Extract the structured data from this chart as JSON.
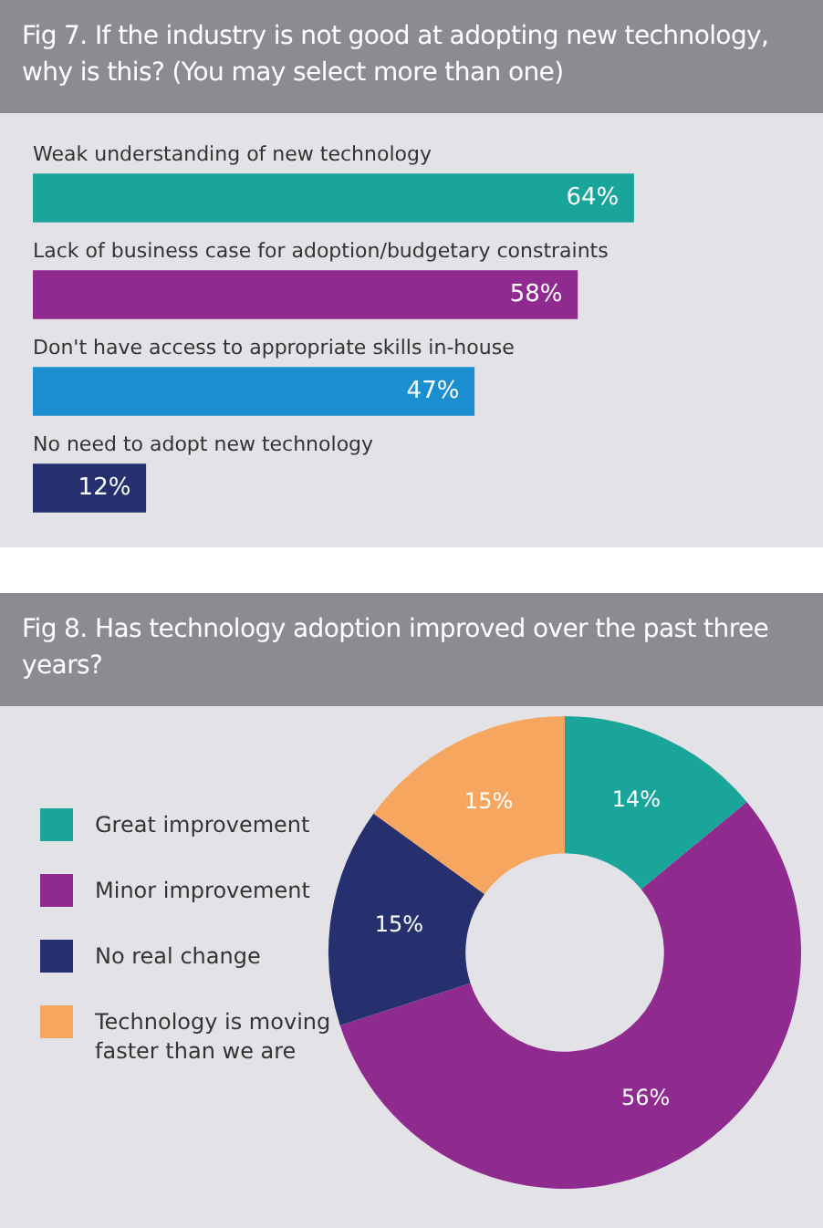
{
  "chart_data": [
    {
      "type": "bar",
      "orientation": "horizontal",
      "title": "Fig 7. If the industry is not good at adopting new technology, why is this? (You may select more than one)",
      "categories": [
        "Weak understanding of new technology",
        "Lack of business case for adoption/budgetary constraints",
        "Don't have access to appropriate skills in-house",
        "No need to adopt new technology"
      ],
      "values": [
        64,
        58,
        47,
        12
      ],
      "colors": [
        "#1aa59b",
        "#8f2a8f",
        "#1b8ed0",
        "#26306e"
      ],
      "value_labels": [
        "64%",
        "58%",
        "47%",
        "12%"
      ],
      "legend": false,
      "tick_labels": false
    },
    {
      "type": "donut",
      "title": "Fig 8. Has technology adoption improved over the past three years?",
      "categories": [
        "Great improvement",
        "Minor improvement",
        "No real change",
        "Technology is moving faster than we are"
      ],
      "values": [
        14,
        56,
        15,
        15
      ],
      "colors": [
        "#1aa59b",
        "#8f2a8f",
        "#26306e",
        "#f6a65f"
      ],
      "value_labels": [
        "14%",
        "56%",
        "15%",
        "15%"
      ],
      "legend": "left"
    }
  ]
}
